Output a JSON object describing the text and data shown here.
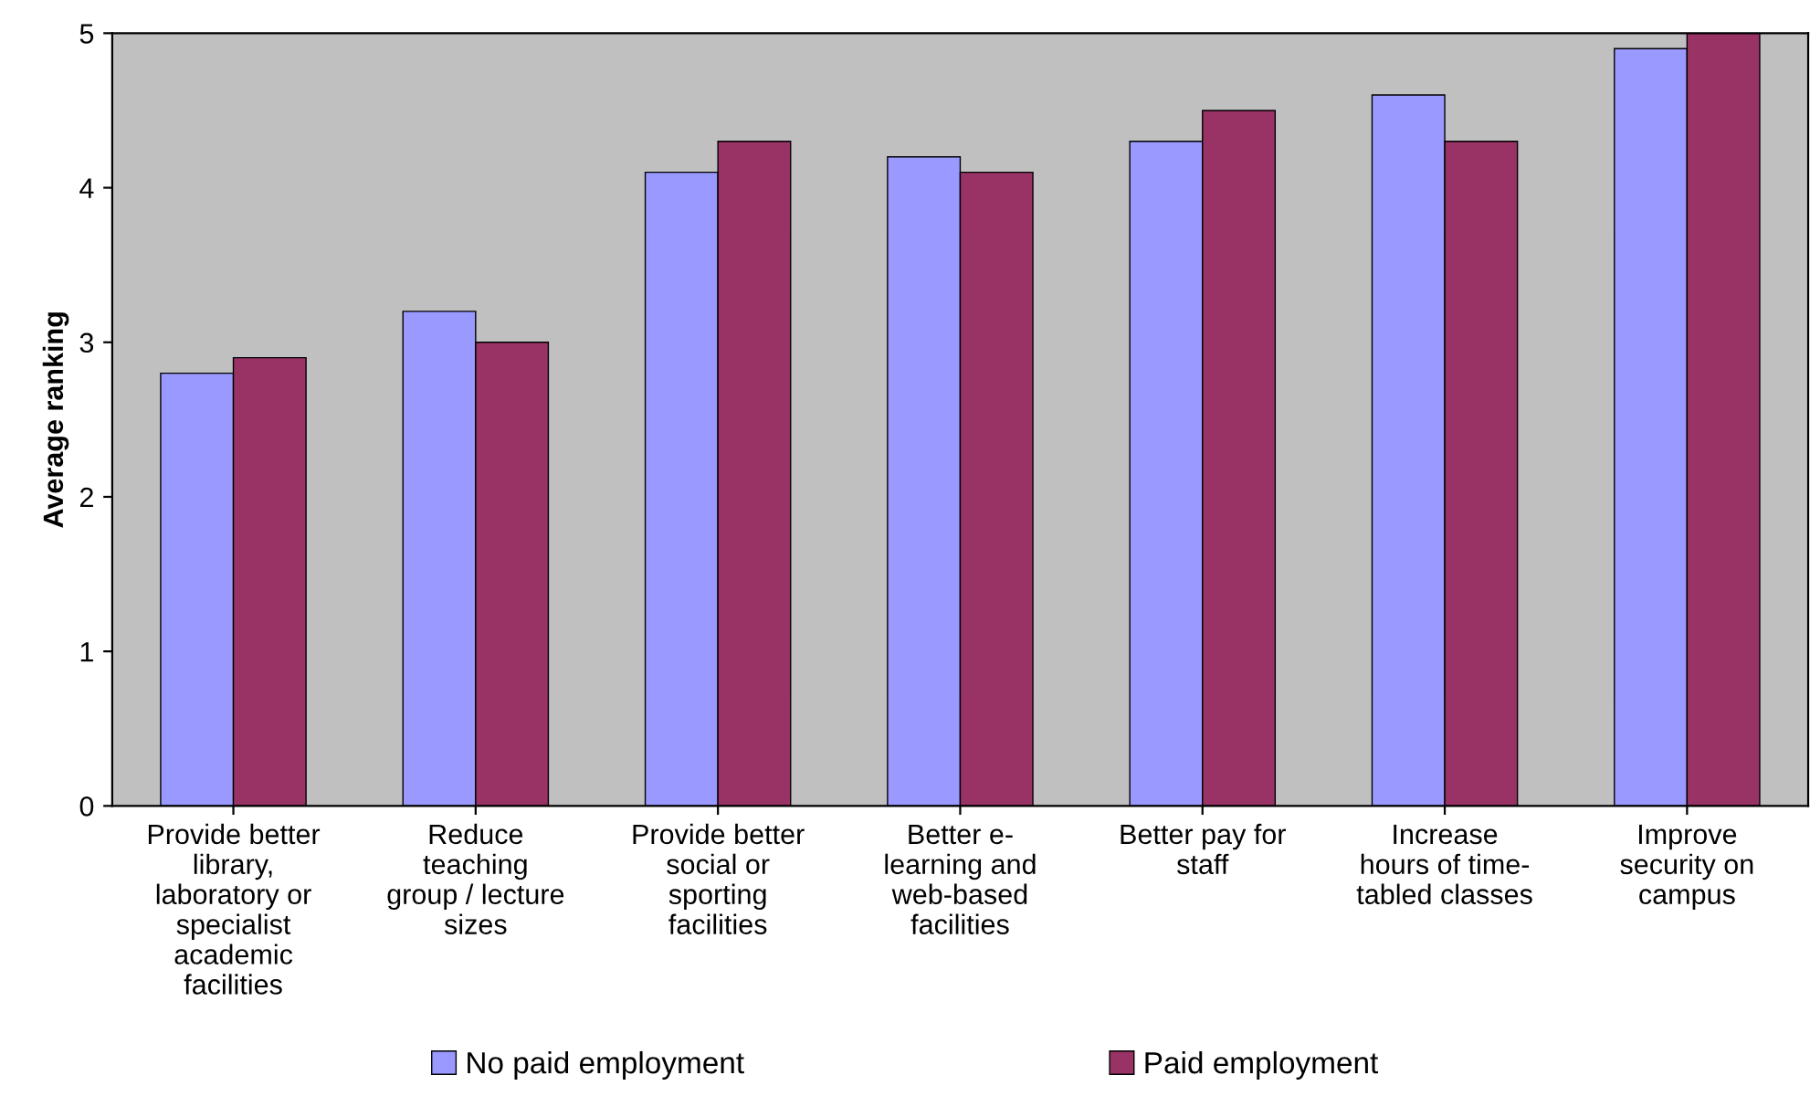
{
  "chart_data": {
    "type": "bar",
    "ylabel": "Average ranking",
    "categories": [
      "Provide better\nlibrary,\nlaboratory or\nspecialist\nacademic\nfacilities",
      "Reduce\nteaching\ngroup / lecture\nsizes",
      "Provide better\nsocial or\nsporting\nfacilities",
      "Better e-\nlearning and\nweb-based\nfacilities",
      "Better pay for\nstaff",
      "Increase\nhours of time-\ntabled classes",
      "Improve\nsecurity on\ncampus"
    ],
    "series": [
      {
        "name": "No paid employment",
        "color": "#9999ff",
        "values": [
          2.8,
          3.2,
          4.1,
          4.2,
          4.3,
          4.6,
          4.9
        ]
      },
      {
        "name": "Paid employment",
        "color": "#993366",
        "values": [
          2.9,
          3.0,
          4.3,
          4.1,
          4.5,
          4.3,
          5.0
        ]
      }
    ],
    "ylim": [
      0,
      5
    ],
    "yticks": [
      0,
      1,
      2,
      3,
      4,
      5
    ],
    "grid": false,
    "legend": "bottom"
  }
}
